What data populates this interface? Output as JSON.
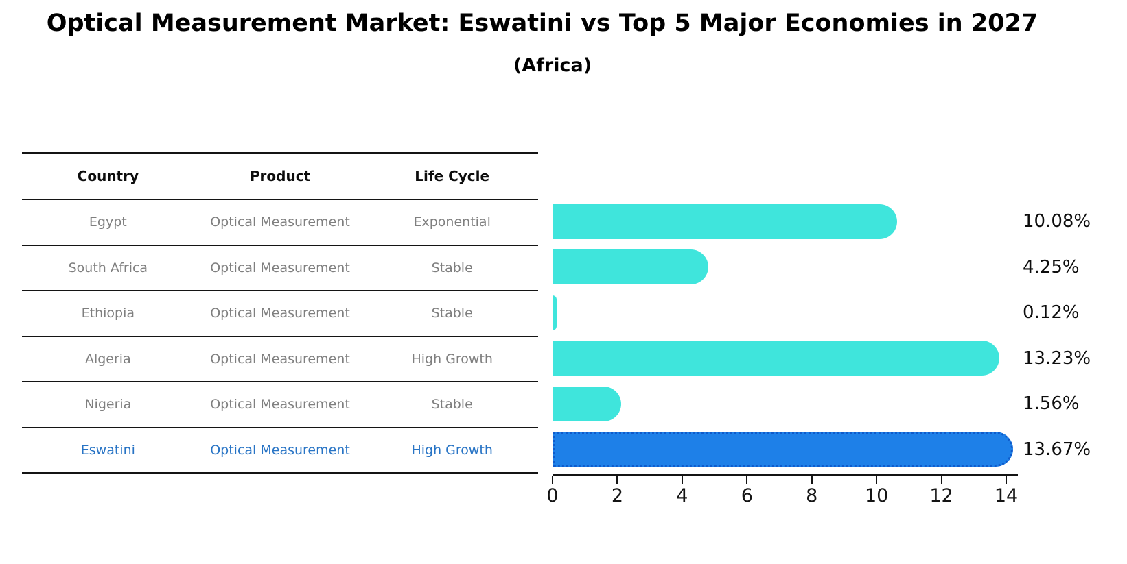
{
  "header": {
    "title": "Optical Measurement Market: Eswatini vs Top 5 Major Economies in 2027",
    "subtitle": "(Africa)"
  },
  "table": {
    "columns": [
      "Country",
      "Product",
      "Life Cycle"
    ],
    "rows": [
      {
        "country": "Egypt",
        "product": "Optical Measurement",
        "life_cycle": "Exponential"
      },
      {
        "country": "South Africa",
        "product": "Optical Measurement",
        "life_cycle": "Stable"
      },
      {
        "country": "Ethiopia",
        "product": "Optical Measurement",
        "life_cycle": "Stable"
      },
      {
        "country": "Algeria",
        "product": "Optical Measurement",
        "life_cycle": "High Growth"
      },
      {
        "country": "Nigeria",
        "product": "Optical Measurement",
        "life_cycle": "Stable"
      },
      {
        "country": "Eswatini",
        "product": "Optical Measurement",
        "life_cycle": "High Growth"
      }
    ],
    "highlighted_row": "Eswatini"
  },
  "chart_data": {
    "type": "bar",
    "orientation": "horizontal",
    "title": "Optical Measurement Market: Eswatini vs Top 5 Major Economies in 2027 (Africa)",
    "categories": [
      "Egypt",
      "South Africa",
      "Ethiopia",
      "Algeria",
      "Nigeria",
      "Eswatini"
    ],
    "values": [
      10.08,
      4.25,
      0.12,
      13.23,
      1.56,
      13.67
    ],
    "value_labels": [
      "10.08%",
      "4.25%",
      "0.12%",
      "13.23%",
      "1.56%",
      "13.67%"
    ],
    "x_ticks": [
      "0",
      "2",
      "4",
      "6",
      "8",
      "10",
      "12",
      "14"
    ],
    "xlim": [
      0,
      14
    ],
    "grid": false,
    "legend": false,
    "bar_color": "#3FE5DC",
    "highlight_index": 5,
    "highlight_bar_color": "#1E80E8",
    "highlight_border_color": "#0F5BCB"
  },
  "colors": {
    "table_text": "#7f7f7f",
    "highlight_text": "#2874C5",
    "axis": "#141414"
  }
}
